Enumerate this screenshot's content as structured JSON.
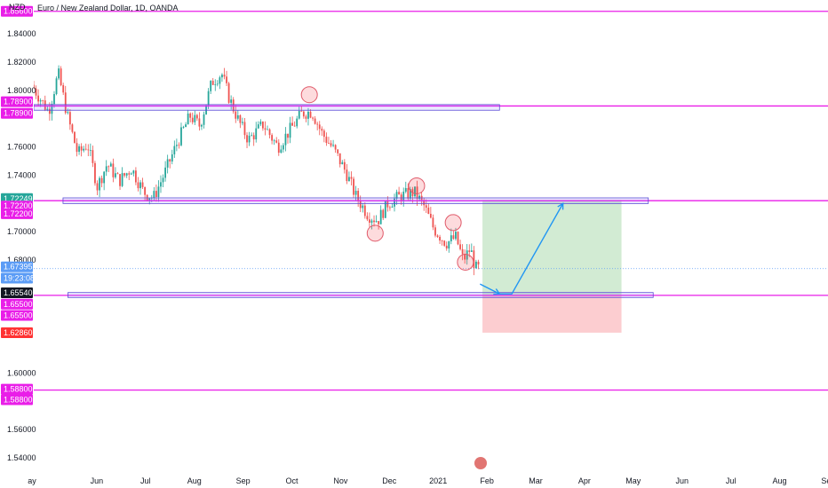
{
  "chart_data": {
    "type": "candlestick",
    "title": "Euro / New Zealand Dollar, 1D, OANDA",
    "axis_unit_label": "NZD",
    "ylim": [
      1.53,
      1.864
    ],
    "y_ticks": [
      "1.84000",
      "1.82000",
      "1.80000",
      "1.76000",
      "1.74000",
      "1.70000",
      "1.68000",
      "1.60000",
      "1.56000",
      "1.54000"
    ],
    "x_ticks": [
      "ay",
      "Jun",
      "Jul",
      "Aug",
      "Sep",
      "Oct",
      "Nov",
      "Dec",
      "2021",
      "Feb",
      "Mar",
      "Apr",
      "May",
      "Jun",
      "Jul",
      "Aug",
      "Sep"
    ],
    "x_tick_month_index": [
      0,
      1,
      2,
      3,
      4,
      5,
      6,
      7,
      8,
      9,
      10,
      11,
      12,
      13,
      14,
      15,
      16
    ],
    "last_data_month_index": 9.15,
    "price_badges": [
      {
        "label": "1.85600",
        "value": 1.856,
        "color": "#e91ee8"
      },
      {
        "label": "1.78900",
        "value": 1.792,
        "color": "#e91ee8"
      },
      {
        "label": "1.78900",
        "value": 1.7838,
        "color": "#e91ee8"
      },
      {
        "label": "1.72249",
        "value": 1.7235,
        "color": "#26a69a"
      },
      {
        "label": "1.72200",
        "value": 1.7182,
        "color": "#e91ee8"
      },
      {
        "label": "1.72200",
        "value": 1.7128,
        "color": "#e91ee8"
      },
      {
        "label": "1.67395",
        "value": 1.6752,
        "color": "#5b9cf6"
      },
      {
        "label": "19:23:08",
        "value": 1.6672,
        "color": "#5b9cf6"
      },
      {
        "label": "1.65540",
        "value": 1.6568,
        "color": "#131722"
      },
      {
        "label": "1.65500",
        "value": 1.6488,
        "color": "#e91ee8"
      },
      {
        "label": "1.65500",
        "value": 1.6408,
        "color": "#e91ee8"
      },
      {
        "label": "1.62860",
        "value": 1.6286,
        "color": "#ff3333"
      },
      {
        "label": "1.58800",
        "value": 1.5886,
        "color": "#e91ee8"
      },
      {
        "label": "1.58800",
        "value": 1.5812,
        "color": "#e91ee8"
      }
    ],
    "horizontal_levels": [
      1.856,
      1.789,
      1.722,
      1.655,
      1.588
    ],
    "zones": [
      {
        "kind": "rect",
        "top": 1.79,
        "bottom": 1.786,
        "x_from": 0.0,
        "x_to": 9.55
      },
      {
        "kind": "rect",
        "top": 1.724,
        "bottom": 1.72,
        "x_from": 0.6,
        "x_to": 12.6
      },
      {
        "kind": "rect",
        "top": 1.657,
        "bottom": 1.6535,
        "x_from": 0.7,
        "x_to": 12.7
      }
    ],
    "position": {
      "entry": 1.6554,
      "target": 1.7225,
      "stop": 1.6286,
      "x_from": 9.2,
      "x_to": 12.05
    },
    "projection_path": [
      [
        9.15,
        1.663
      ],
      [
        9.55,
        1.656
      ],
      [
        9.8,
        1.656
      ],
      [
        10.85,
        1.72
      ]
    ],
    "circles": [
      {
        "x": 5.65,
        "y": 1.797
      },
      {
        "x": 7.85,
        "y": 1.7325
      },
      {
        "x": 7.0,
        "y": 1.699
      },
      {
        "x": 8.6,
        "y": 1.7065
      },
      {
        "x": 8.85,
        "y": 1.6785
      }
    ],
    "series_waypoints": [
      [
        0.0,
        1.804
      ],
      [
        0.35,
        1.785
      ],
      [
        0.55,
        1.812
      ],
      [
        0.75,
        1.78
      ],
      [
        0.95,
        1.755
      ],
      [
        1.15,
        1.762
      ],
      [
        1.35,
        1.732
      ],
      [
        1.55,
        1.748
      ],
      [
        1.8,
        1.736
      ],
      [
        2.05,
        1.745
      ],
      [
        2.3,
        1.728
      ],
      [
        2.5,
        1.724
      ],
      [
        2.75,
        1.743
      ],
      [
        3.0,
        1.764
      ],
      [
        3.25,
        1.782
      ],
      [
        3.45,
        1.775
      ],
      [
        3.7,
        1.806
      ],
      [
        3.9,
        1.812
      ],
      [
        4.05,
        1.795
      ],
      [
        4.25,
        1.778
      ],
      [
        4.45,
        1.765
      ],
      [
        4.75,
        1.776
      ],
      [
        5.05,
        1.76
      ],
      [
        5.3,
        1.772
      ],
      [
        5.55,
        1.784
      ],
      [
        5.75,
        1.785
      ],
      [
        5.95,
        1.77
      ],
      [
        6.2,
        1.758
      ],
      [
        6.45,
        1.742
      ],
      [
        6.65,
        1.725
      ],
      [
        6.9,
        1.712
      ],
      [
        7.1,
        1.708
      ],
      [
        7.3,
        1.72
      ],
      [
        7.55,
        1.725
      ],
      [
        7.85,
        1.728
      ],
      [
        8.05,
        1.718
      ],
      [
        8.25,
        1.702
      ],
      [
        8.5,
        1.692
      ],
      [
        8.7,
        1.696
      ],
      [
        8.85,
        1.68
      ],
      [
        9.0,
        1.688
      ],
      [
        9.1,
        1.674
      ]
    ]
  }
}
